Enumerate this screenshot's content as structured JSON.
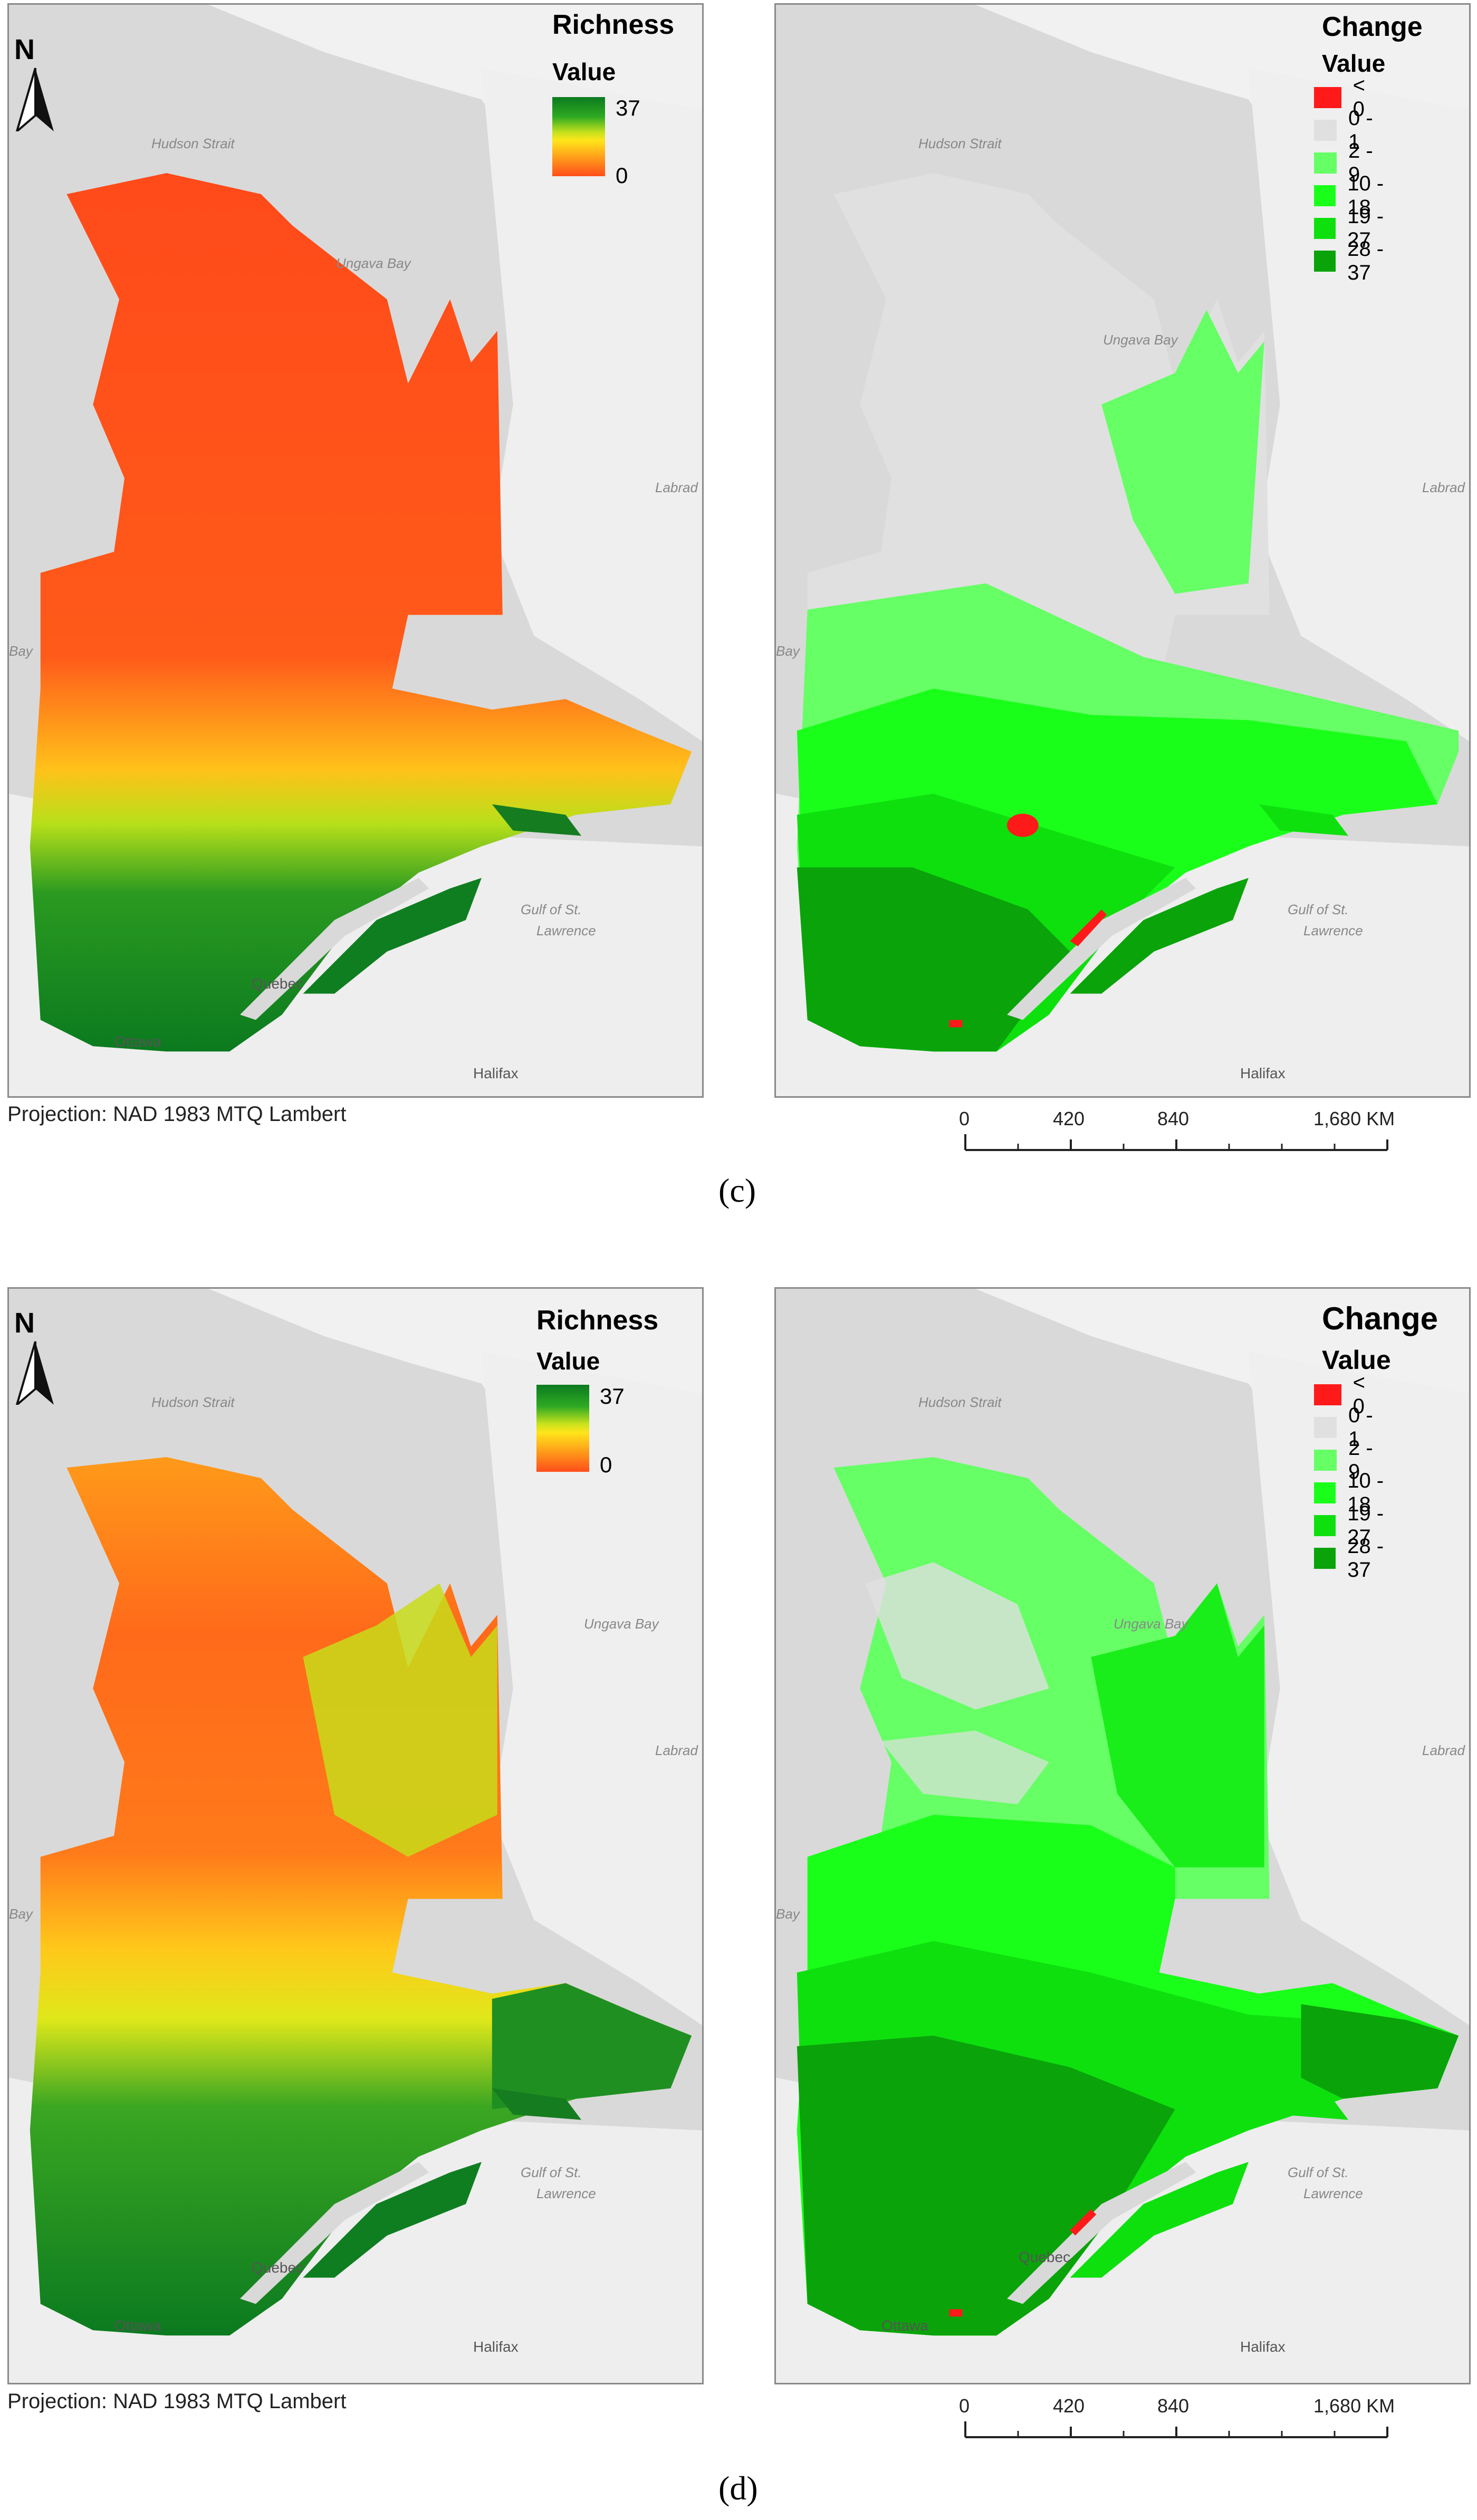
{
  "panel_c": {
    "label": "(c)",
    "projection": "Projection: NAD 1983 MTQ Lambert",
    "richness_legend": {
      "title": "Richness",
      "subtitle": "Value",
      "max": "37",
      "min": "0"
    },
    "change_legend": {
      "title": "Change",
      "subtitle": "Value",
      "classes": [
        {
          "label": "< 0",
          "color": "#ff1a1a"
        },
        {
          "label": "0 - 1",
          "color": "#e0e0e0"
        },
        {
          "label": "2 - 9",
          "color": "#66ff66"
        },
        {
          "label": "10 - 18",
          "color": "#1aff1a"
        },
        {
          "label": "19 - 27",
          "color": "#0ee00e"
        },
        {
          "label": "28 - 37",
          "color": "#0aa30a"
        }
      ]
    },
    "north": "N",
    "place_labels": {
      "hudson_strait": "Hudson Strait",
      "ungava_bay": "Ungava Bay",
      "labrador": "Labrad",
      "gulf": "Gulf of St.",
      "lawrence": "Lawrence",
      "quebec": "Quebec",
      "ottawa": "Ottawa",
      "halifax": "Halifax",
      "bay": "Bay"
    },
    "scale": {
      "ticks": [
        "0",
        "420",
        "840",
        "1,680 KM"
      ]
    }
  },
  "panel_d": {
    "label": "(d)",
    "projection": "Projection: NAD 1983 MTQ Lambert",
    "richness_legend": {
      "title": "Richness",
      "subtitle": "Value",
      "max": "37",
      "min": "0"
    },
    "change_legend": {
      "title": "Change",
      "subtitle": "Value",
      "classes": [
        {
          "label": "< 0",
          "color": "#ff1a1a"
        },
        {
          "label": "0 - 1",
          "color": "#e0e0e0"
        },
        {
          "label": "2 - 9",
          "color": "#66ff66"
        },
        {
          "label": "10 - 18",
          "color": "#1aff1a"
        },
        {
          "label": "19 - 27",
          "color": "#0ee00e"
        },
        {
          "label": "28 - 37",
          "color": "#0aa30a"
        }
      ]
    },
    "north": "N",
    "place_labels": {
      "hudson_strait": "Hudson Strait",
      "ungava_bay": "Ungava Bay",
      "labrador": "Labrad",
      "gulf": "Gulf of St.",
      "lawrence": "Lawrence",
      "quebec": "Quebec",
      "ottawa": "Ottawa",
      "halifax": "Halifax",
      "bay": "Bay"
    },
    "scale": {
      "ticks": [
        "0",
        "420",
        "840",
        "1,680 KM"
      ]
    }
  }
}
